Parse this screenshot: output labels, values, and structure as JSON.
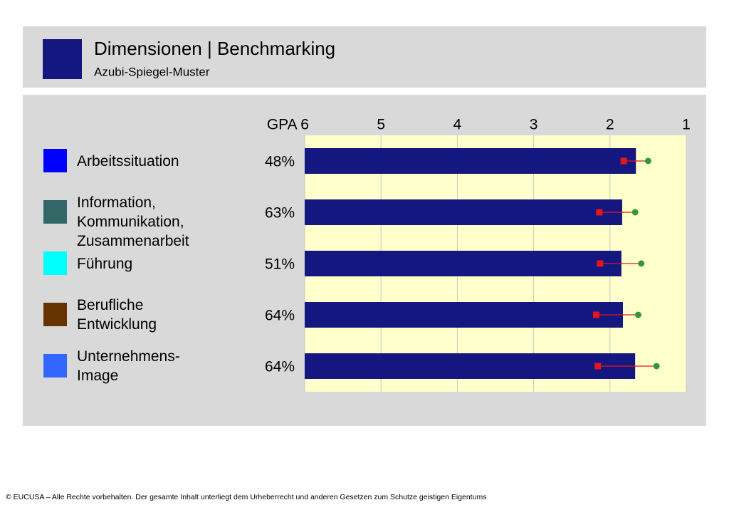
{
  "header": {
    "title": "Dimensionen | Benchmarking",
    "subtitle": "Azubi-Spiegel-Muster"
  },
  "chart_data": {
    "type": "bar",
    "orientation": "horizontal",
    "categories": [
      "Arbeitssituation",
      "Information, Kommunikation, Zusammenarbeit",
      "Führung",
      "Berufliche Entwicklung",
      "Unternehmens-Image"
    ],
    "category_colors": [
      "#0000ff",
      "#336666",
      "#00ffff",
      "#663300",
      "#3366ff"
    ],
    "percentages": [
      48,
      63,
      51,
      64,
      64
    ],
    "percentage_labels": [
      "48%",
      "63%",
      "51%",
      "64%",
      "64%"
    ],
    "series": [
      {
        "color": "#13177f",
        "marker": "bar",
        "values": [
          1.66,
          1.84,
          1.85,
          1.83,
          1.67
        ]
      },
      {
        "color": "#e8141c",
        "marker": "square",
        "values": [
          1.82,
          2.14,
          2.13,
          2.18,
          2.16
        ]
      },
      {
        "color": "#339933",
        "marker": "circle",
        "values": [
          1.5,
          1.67,
          1.59,
          1.63,
          1.39
        ]
      }
    ],
    "xlim": [
      6,
      1
    ],
    "xticks": [
      {
        "value": 6,
        "label": "GPA 6"
      },
      5,
      4,
      3,
      2,
      1
    ],
    "plot_background": "#ffffcc",
    "grid": true
  },
  "footer": "© EUCUSA – Alle Rechte vorbehalten. Der gesamte Inhalt unterliegt dem Urheberrecht und anderen Gesetzen zum Schutze geistigen Eigentums"
}
